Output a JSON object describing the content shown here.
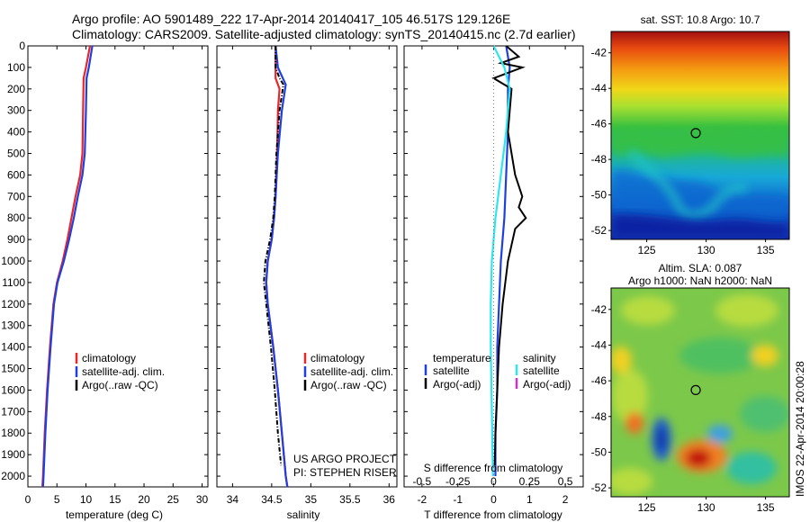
{
  "header": {
    "line1": "Argo profile: AO 5901489_222 17-Apr-2014 20140417_105 46.517S 129.126E",
    "line2": "Climatology: CARS2009. Satellite-adjusted climatology: synTS_20140415.nc (2.7d earlier)"
  },
  "credits": {
    "project": "US ARGO PROJECT",
    "pi": "PI: STEPHEN RISER",
    "imos": "IMOS 22-Apr-2014 20:00:28"
  },
  "colors": {
    "climatology": "#e8262b",
    "satellite": "#1f3fe0",
    "argo": "#000000",
    "sal_satellite": "#2ee6ee",
    "sal_argo": "#d030d0"
  },
  "chart_data": [
    {
      "type": "line",
      "name": "temperature-profile",
      "xlabel": "temperature (deg C)",
      "ylabel": "",
      "xlim": [
        0,
        31
      ],
      "ylim": [
        0,
        2050
      ],
      "y_inverted": true,
      "xticks": [
        0,
        5,
        10,
        15,
        20,
        25,
        30
      ],
      "yticks": [
        0,
        100,
        200,
        300,
        400,
        500,
        600,
        700,
        800,
        900,
        1000,
        1100,
        1200,
        1300,
        1400,
        1500,
        1600,
        1700,
        1800,
        1900,
        2000
      ],
      "legend": [
        "climatology",
        "satellite-adj. clim.",
        "Argo(..raw -QC)"
      ],
      "series": [
        {
          "name": "climatology",
          "color": "#e8262b",
          "depth": [
            0,
            100,
            150,
            300,
            500,
            600,
            700,
            800,
            900,
            1000,
            1100,
            1200,
            1400,
            1600,
            1800,
            2000,
            2050
          ],
          "values": [
            10.7,
            10.0,
            9.6,
            9.5,
            9.4,
            9.0,
            8.2,
            7.5,
            6.8,
            6.0,
            5.0,
            4.4,
            3.8,
            3.3,
            2.9,
            2.6,
            2.5
          ]
        },
        {
          "name": "satellite-adj. clim.",
          "color": "#1f3fe0",
          "depth": [
            0,
            100,
            150,
            300,
            500,
            600,
            700,
            800,
            900,
            1000,
            1100,
            1200,
            1400,
            1600,
            1800,
            2000,
            2050
          ],
          "values": [
            11.1,
            10.5,
            10.1,
            10.0,
            9.8,
            9.4,
            8.6,
            7.9,
            7.1,
            6.2,
            5.1,
            4.5,
            3.9,
            3.4,
            3.0,
            2.7,
            2.6
          ]
        }
      ]
    },
    {
      "type": "line",
      "name": "salinity-profile",
      "xlabel": "salinity",
      "ylabel": "",
      "xlim": [
        33.8,
        36.1
      ],
      "ylim": [
        0,
        2050
      ],
      "y_inverted": true,
      "xticks": [
        34,
        34.5,
        35,
        35.5,
        36
      ],
      "legend": [
        "climatology",
        "satellite-adj. clim.",
        "Argo(..raw -QC)"
      ],
      "series": [
        {
          "name": "climatology",
          "color": "#e8262b",
          "depth": [
            0,
            150,
            200,
            300,
            500,
            700,
            800,
            900,
            1000,
            1100,
            1200,
            1400,
            1600,
            1800,
            2000,
            2050
          ],
          "values": [
            34.55,
            34.55,
            34.6,
            34.58,
            34.57,
            34.55,
            34.53,
            34.5,
            34.45,
            34.43,
            34.45,
            34.52,
            34.58,
            34.63,
            34.68,
            34.7
          ]
        },
        {
          "name": "satellite-adj. clim.",
          "color": "#1f3fe0",
          "depth": [
            0,
            100,
            180,
            300,
            500,
            700,
            800,
            900,
            1000,
            1100,
            1200,
            1400,
            1600,
            1800,
            2000,
            2050
          ],
          "values": [
            34.55,
            34.58,
            34.68,
            34.63,
            34.58,
            34.55,
            34.53,
            34.5,
            34.45,
            34.43,
            34.45,
            34.52,
            34.58,
            34.63,
            34.68,
            34.7
          ]
        },
        {
          "name": "Argo(..raw -QC)",
          "color": "#000000",
          "depth": [
            0,
            100,
            150,
            180,
            300,
            500,
            700,
            800,
            900,
            1000,
            1100,
            1200,
            1400,
            1600,
            1800,
            1950
          ],
          "values": [
            34.55,
            34.55,
            34.6,
            34.65,
            34.6,
            34.56,
            34.54,
            34.52,
            34.48,
            34.42,
            34.4,
            34.43,
            34.49,
            34.54,
            34.58,
            34.62
          ]
        }
      ]
    },
    {
      "type": "line",
      "name": "difference-profile",
      "xlabel": "T difference from climatology",
      "xlabel_top": "S difference from climatology",
      "xlim": [
        -2.5,
        2.5
      ],
      "ylim": [
        0,
        2050
      ],
      "y_inverted": true,
      "xticks": [
        -2,
        -1,
        0,
        1,
        2
      ],
      "xticks_s": [
        "-0.5",
        "-0.25",
        "0",
        "0.25",
        "0.5"
      ],
      "legend_groups": {
        "temperature": [
          "satellite",
          "Argo(-adj)"
        ],
        "salinity": [
          "satellite",
          "Argo(-adj)"
        ]
      },
      "series": [
        {
          "name": "temperature satellite",
          "color": "#1f3fe0",
          "depth": [
            0,
            100,
            200,
            400,
            600,
            800,
            1000,
            1200,
            1400,
            1600,
            1800,
            2000
          ],
          "values": [
            0.35,
            0.45,
            0.4,
            0.4,
            0.35,
            0.3,
            0.2,
            0.15,
            0.1,
            0.1,
            0.05,
            0.05
          ]
        },
        {
          "name": "temperature Argo(-adj)",
          "color": "#000000",
          "depth": [
            0,
            50,
            80,
            100,
            150,
            200,
            400,
            600,
            700,
            750,
            800,
            850,
            1000,
            1200,
            1400,
            1600,
            1800,
            1950
          ],
          "values": [
            0.35,
            0.7,
            0.2,
            0.8,
            0.0,
            0.5,
            0.4,
            0.6,
            0.8,
            0.7,
            0.9,
            0.6,
            0.4,
            0.25,
            0.15,
            0.1,
            0.05,
            0.03
          ]
        },
        {
          "name": "salinity satellite",
          "color": "#2ee6ee",
          "depth": [
            0,
            100,
            200,
            400,
            600,
            800,
            1000,
            1200,
            1400,
            1600,
            1800,
            2000
          ],
          "values": [
            0.0,
            0.3,
            0.45,
            0.35,
            0.2,
            0.05,
            -0.05,
            -0.08,
            -0.08,
            -0.06,
            -0.04,
            -0.02
          ]
        }
      ]
    },
    {
      "type": "heatmap",
      "name": "sst-map",
      "title": "sat. SST: 10.8 Argo: 10.7",
      "xlim": [
        122,
        137
      ],
      "ylim": [
        -52.5,
        -40.8
      ],
      "xticks": [
        125,
        130,
        135
      ],
      "yticks": [
        -42,
        -44,
        -46,
        -48,
        -50,
        -52
      ],
      "marker": {
        "lon": 129.126,
        "lat": -46.517
      }
    },
    {
      "type": "heatmap",
      "name": "sla-map",
      "title": "Altim. SLA: 0.087",
      "subtitle": "Argo h1000: NaN h2000: NaN",
      "xlim": [
        122,
        137
      ],
      "ylim": [
        -52.5,
        -40.8
      ],
      "xticks": [
        125,
        130,
        135
      ],
      "yticks": [
        -42,
        -44,
        -46,
        -48,
        -50,
        -52
      ],
      "marker": {
        "lon": 129.126,
        "lat": -46.517
      }
    }
  ]
}
